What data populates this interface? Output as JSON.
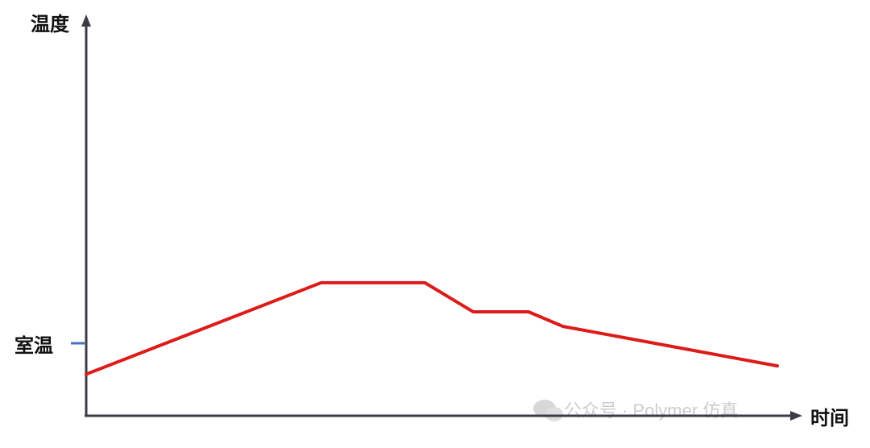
{
  "chart_data": {
    "type": "line",
    "ylabel": "温度",
    "xlabel": "时间",
    "y_marker_label": "室温",
    "grid": false,
    "xlim": [
      0,
      10
    ],
    "ylim": [
      0,
      10
    ],
    "series": [
      {
        "color": "#dd1c1a",
        "points": [
          {
            "x": 0.0,
            "y": 1.0
          },
          {
            "x": 3.4,
            "y": 3.2
          },
          {
            "x": 4.9,
            "y": 3.2
          },
          {
            "x": 5.6,
            "y": 2.5
          },
          {
            "x": 6.4,
            "y": 2.5
          },
          {
            "x": 6.9,
            "y": 2.15
          },
          {
            "x": 10.0,
            "y": 1.2
          }
        ]
      }
    ]
  },
  "colors": {
    "axis": "#3c3c46",
    "marker": "#4472c4",
    "series": "#dd1c1a"
  },
  "watermark": {
    "text": "公众号 · Polymer 仿真"
  }
}
